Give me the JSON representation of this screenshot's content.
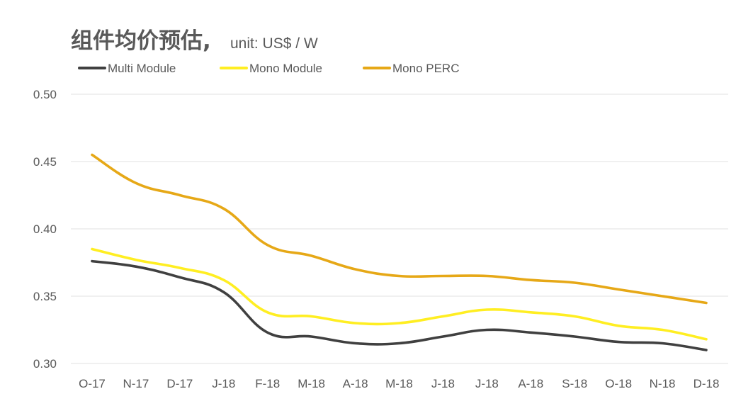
{
  "chart_data": {
    "type": "line",
    "title": "组件均价预估,",
    "subtitle": "unit: US$ / W",
    "xlabel": "",
    "ylabel": "",
    "categories": [
      "O-17",
      "N-17",
      "D-17",
      "J-18",
      "F-18",
      "M-18",
      "A-18",
      "M-18",
      "J-18",
      "J-18",
      "A-18",
      "S-18",
      "O-18",
      "N-18",
      "D-18"
    ],
    "ylim": [
      0.3,
      0.5
    ],
    "yticks": [
      "0.30",
      "0.35",
      "0.40",
      "0.45",
      "0.50"
    ],
    "grid": true,
    "legend_position": "top-left",
    "series": [
      {
        "name": "Multi Module",
        "color": "#404040",
        "values": [
          0.376,
          0.372,
          0.364,
          0.353,
          0.323,
          0.32,
          0.315,
          0.315,
          0.32,
          0.325,
          0.323,
          0.32,
          0.316,
          0.315,
          0.31
        ]
      },
      {
        "name": "Mono Module",
        "color": "#ffee22",
        "values": [
          0.385,
          0.377,
          0.371,
          0.362,
          0.338,
          0.335,
          0.33,
          0.33,
          0.335,
          0.34,
          0.338,
          0.335,
          0.328,
          0.325,
          0.318
        ]
      },
      {
        "name": "Mono PERC",
        "color": "#e6a817",
        "values": [
          0.455,
          0.434,
          0.425,
          0.415,
          0.388,
          0.38,
          0.37,
          0.365,
          0.365,
          0.365,
          0.362,
          0.36,
          0.355,
          0.35,
          0.345
        ]
      }
    ]
  }
}
